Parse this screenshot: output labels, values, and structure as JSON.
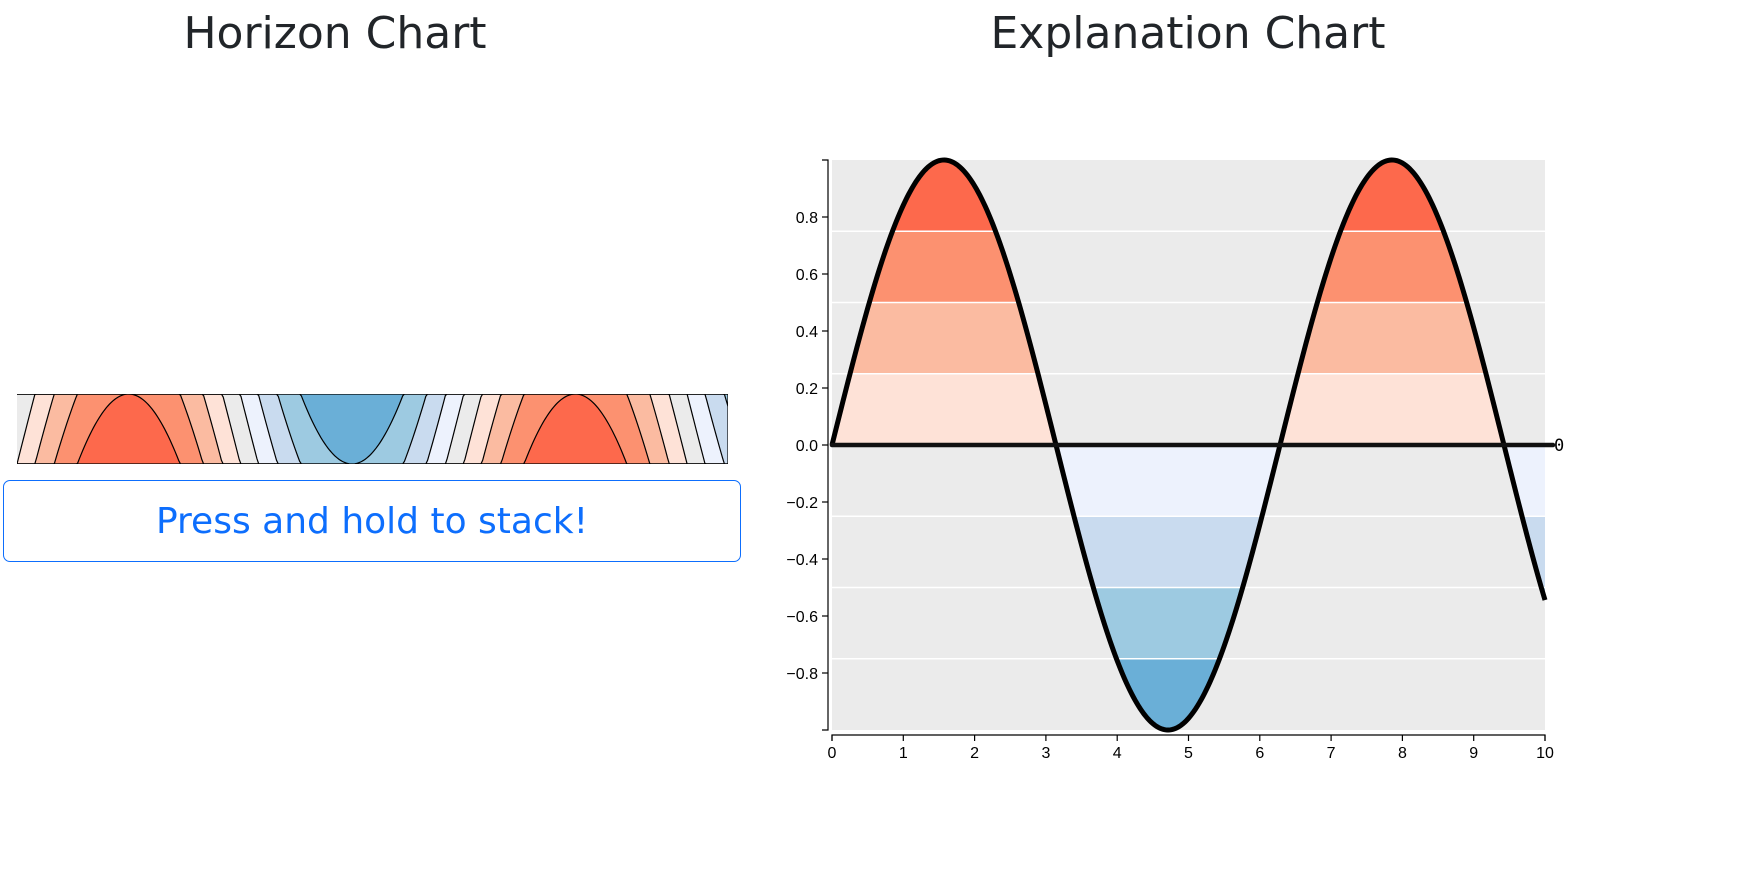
{
  "titles": {
    "horizon": "Horizon Chart",
    "explanation": "Explanation Chart"
  },
  "button": {
    "label": "Press and hold to stack!"
  },
  "colors": {
    "background": "#ebebeb",
    "positive_bands": [
      "#fee2d7",
      "#fbbba1",
      "#fc9170",
      "#fd694c"
    ],
    "negative_bands": [
      "#edf2fd",
      "#c9dbef",
      "#9dcae1",
      "#6aafd7"
    ],
    "line": "#000000",
    "accent": "#0d6efd"
  },
  "chart_data": [
    {
      "type": "area",
      "name": "horizon",
      "function": "sin(x)",
      "x_domain": [
        0,
        10
      ],
      "bands": 4,
      "band_thresholds": [
        0.25,
        0.5,
        0.75,
        1.0
      ]
    },
    {
      "type": "area",
      "name": "explanation",
      "function": "sin(x)",
      "x_domain": [
        0,
        10
      ],
      "xlim": [
        0,
        10
      ],
      "ylim": [
        -1,
        1
      ],
      "x_ticks": [
        "0",
        "1",
        "2",
        "3",
        "4",
        "5",
        "6",
        "7",
        "8",
        "9",
        "10"
      ],
      "y_ticks": [
        "0.8",
        "0.6",
        "0.4",
        "0.2",
        "0.0",
        "−0.2",
        "−0.4",
        "−0.6",
        "−0.8"
      ],
      "y_tick_values": [
        0.8,
        0.6,
        0.4,
        0.2,
        0.0,
        -0.2,
        -0.4,
        -0.6,
        -0.8
      ],
      "band_lines": [
        0.75,
        0.5,
        0.25,
        -0.25,
        -0.5,
        -0.75
      ],
      "baseline_label": "0",
      "x": [
        0,
        0.5,
        1,
        1.5,
        2,
        2.5,
        3,
        3.5,
        4,
        4.5,
        5,
        5.5,
        6,
        6.5,
        7,
        7.5,
        8,
        8.5,
        9,
        9.5,
        10
      ],
      "y": [
        0,
        0.479,
        0.841,
        0.997,
        0.909,
        0.598,
        0.141,
        -0.351,
        -0.757,
        -0.978,
        -0.959,
        -0.706,
        -0.279,
        0.215,
        0.657,
        0.938,
        0.989,
        0.798,
        0.412,
        -0.075,
        -0.544
      ]
    }
  ]
}
